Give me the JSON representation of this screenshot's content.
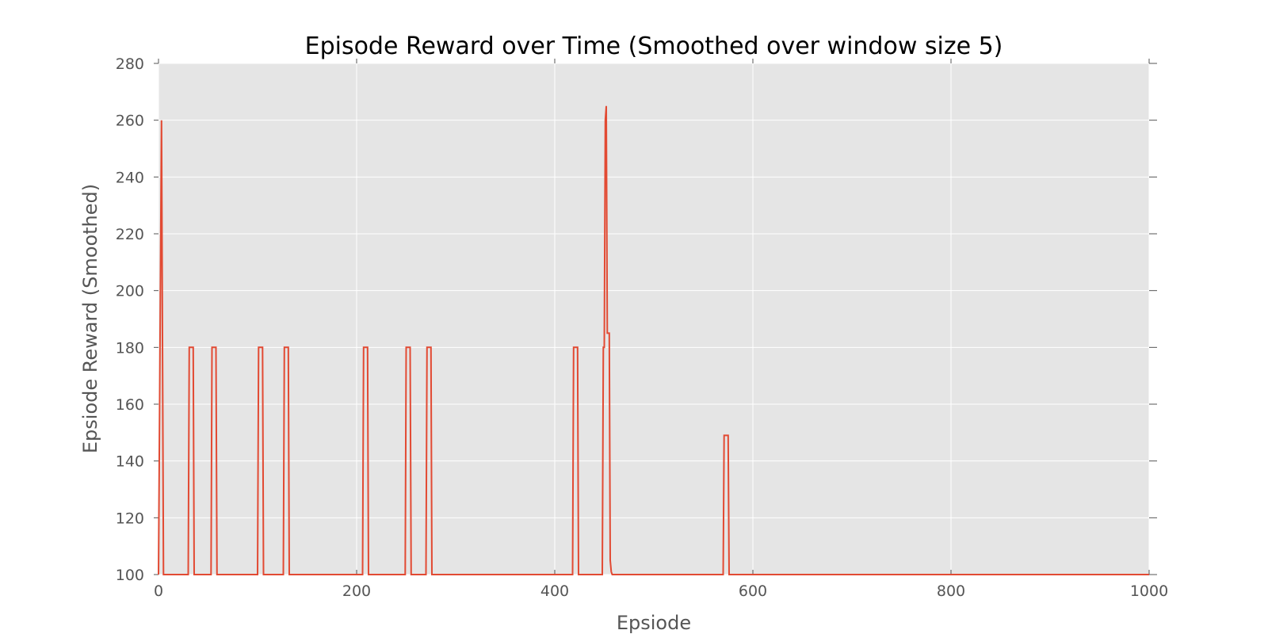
{
  "chart_data": {
    "type": "line",
    "title": "Episode Reward over Time (Smoothed over window size 5)",
    "xlabel": "Epsiode",
    "ylabel": "Epsiode Reward (Smoothed)",
    "xlim": [
      0,
      1000
    ],
    "ylim": [
      100,
      280
    ],
    "xticks": [
      0,
      200,
      400,
      600,
      800,
      1000
    ],
    "yticks": [
      100,
      120,
      140,
      160,
      180,
      200,
      220,
      240,
      260,
      280
    ],
    "grid": true,
    "background": "#e5e5e5",
    "line_color": "#e24a33",
    "series": [
      {
        "x": [
          0,
          3,
          5,
          30,
          31,
          35,
          36,
          53,
          54,
          58,
          59,
          100,
          101,
          105,
          106,
          126,
          127,
          131,
          132,
          206,
          207,
          211,
          212,
          249,
          250,
          254,
          255,
          270,
          271,
          275,
          276,
          418,
          419,
          423,
          424,
          448,
          449,
          450,
          451,
          452,
          453,
          454,
          455,
          456,
          457,
          458,
          459,
          460,
          570,
          571,
          575,
          576,
          1000
        ],
        "y": [
          100,
          260,
          100,
          100,
          180,
          180,
          100,
          100,
          180,
          180,
          100,
          100,
          180,
          180,
          100,
          100,
          180,
          180,
          100,
          100,
          180,
          180,
          100,
          100,
          180,
          180,
          100,
          100,
          180,
          180,
          100,
          100,
          180,
          180,
          100,
          100,
          180,
          180,
          260,
          265,
          185,
          185,
          185,
          105,
          101,
          100,
          100,
          100,
          100,
          149,
          149,
          100,
          100
        ]
      }
    ]
  }
}
